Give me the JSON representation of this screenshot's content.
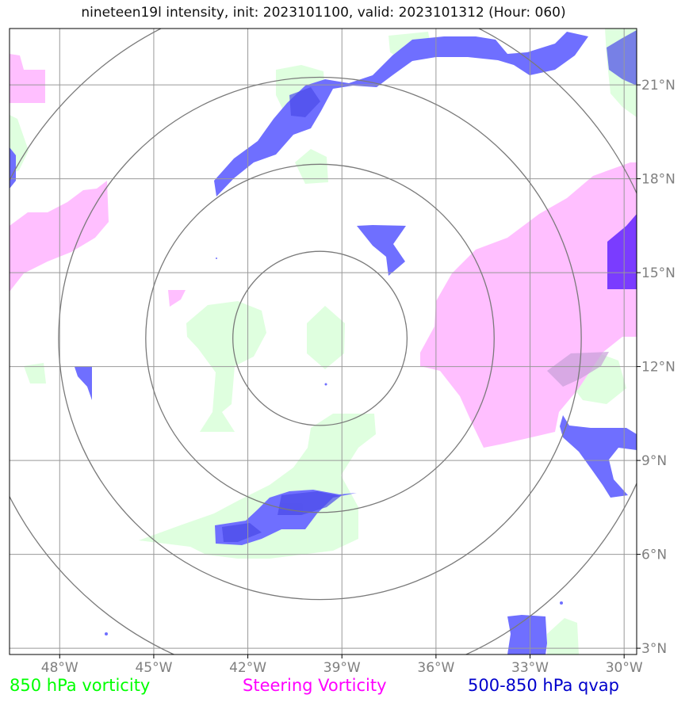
{
  "title": "nineteen19l intensity, init: 2023101100, valid: 2023101312 (Hour: 060)",
  "axes": {
    "lon_labels": [
      "48°W",
      "45°W",
      "42°W",
      "39°W",
      "36°W",
      "33°W",
      "30°W"
    ],
    "lon_values": [
      -48,
      -45,
      -42,
      -39,
      -36,
      -33,
      -30
    ],
    "lat_labels": [
      "21°N",
      "18°N",
      "15°N",
      "12°N",
      "9°N",
      "6°N",
      "3°N"
    ],
    "lat_values": [
      21,
      18,
      15,
      12,
      9,
      6,
      3
    ],
    "lon_range": [
      -49.6,
      -29.6
    ],
    "lat_range": [
      2.8,
      22.8
    ],
    "grid": true,
    "range_rings_center": {
      "lon": -39.7,
      "lat": 12.9
    },
    "range_rings_count": 4
  },
  "legend": {
    "vort850": {
      "label": "850 hPa vorticity",
      "color": "#00ff00"
    },
    "steering": {
      "label": "Steering Vorticity",
      "color": "#ff00ff"
    },
    "qvap": {
      "label": "500-850 hPa qvap",
      "color": "#0000cc"
    }
  },
  "fill_colors": {
    "vort850": "#dfffdf",
    "steering": "#ffbfff",
    "qvap": "#6f6fff",
    "qvap_dark": "#4a4ae8",
    "qvap_purple": "#7a3cff"
  }
}
